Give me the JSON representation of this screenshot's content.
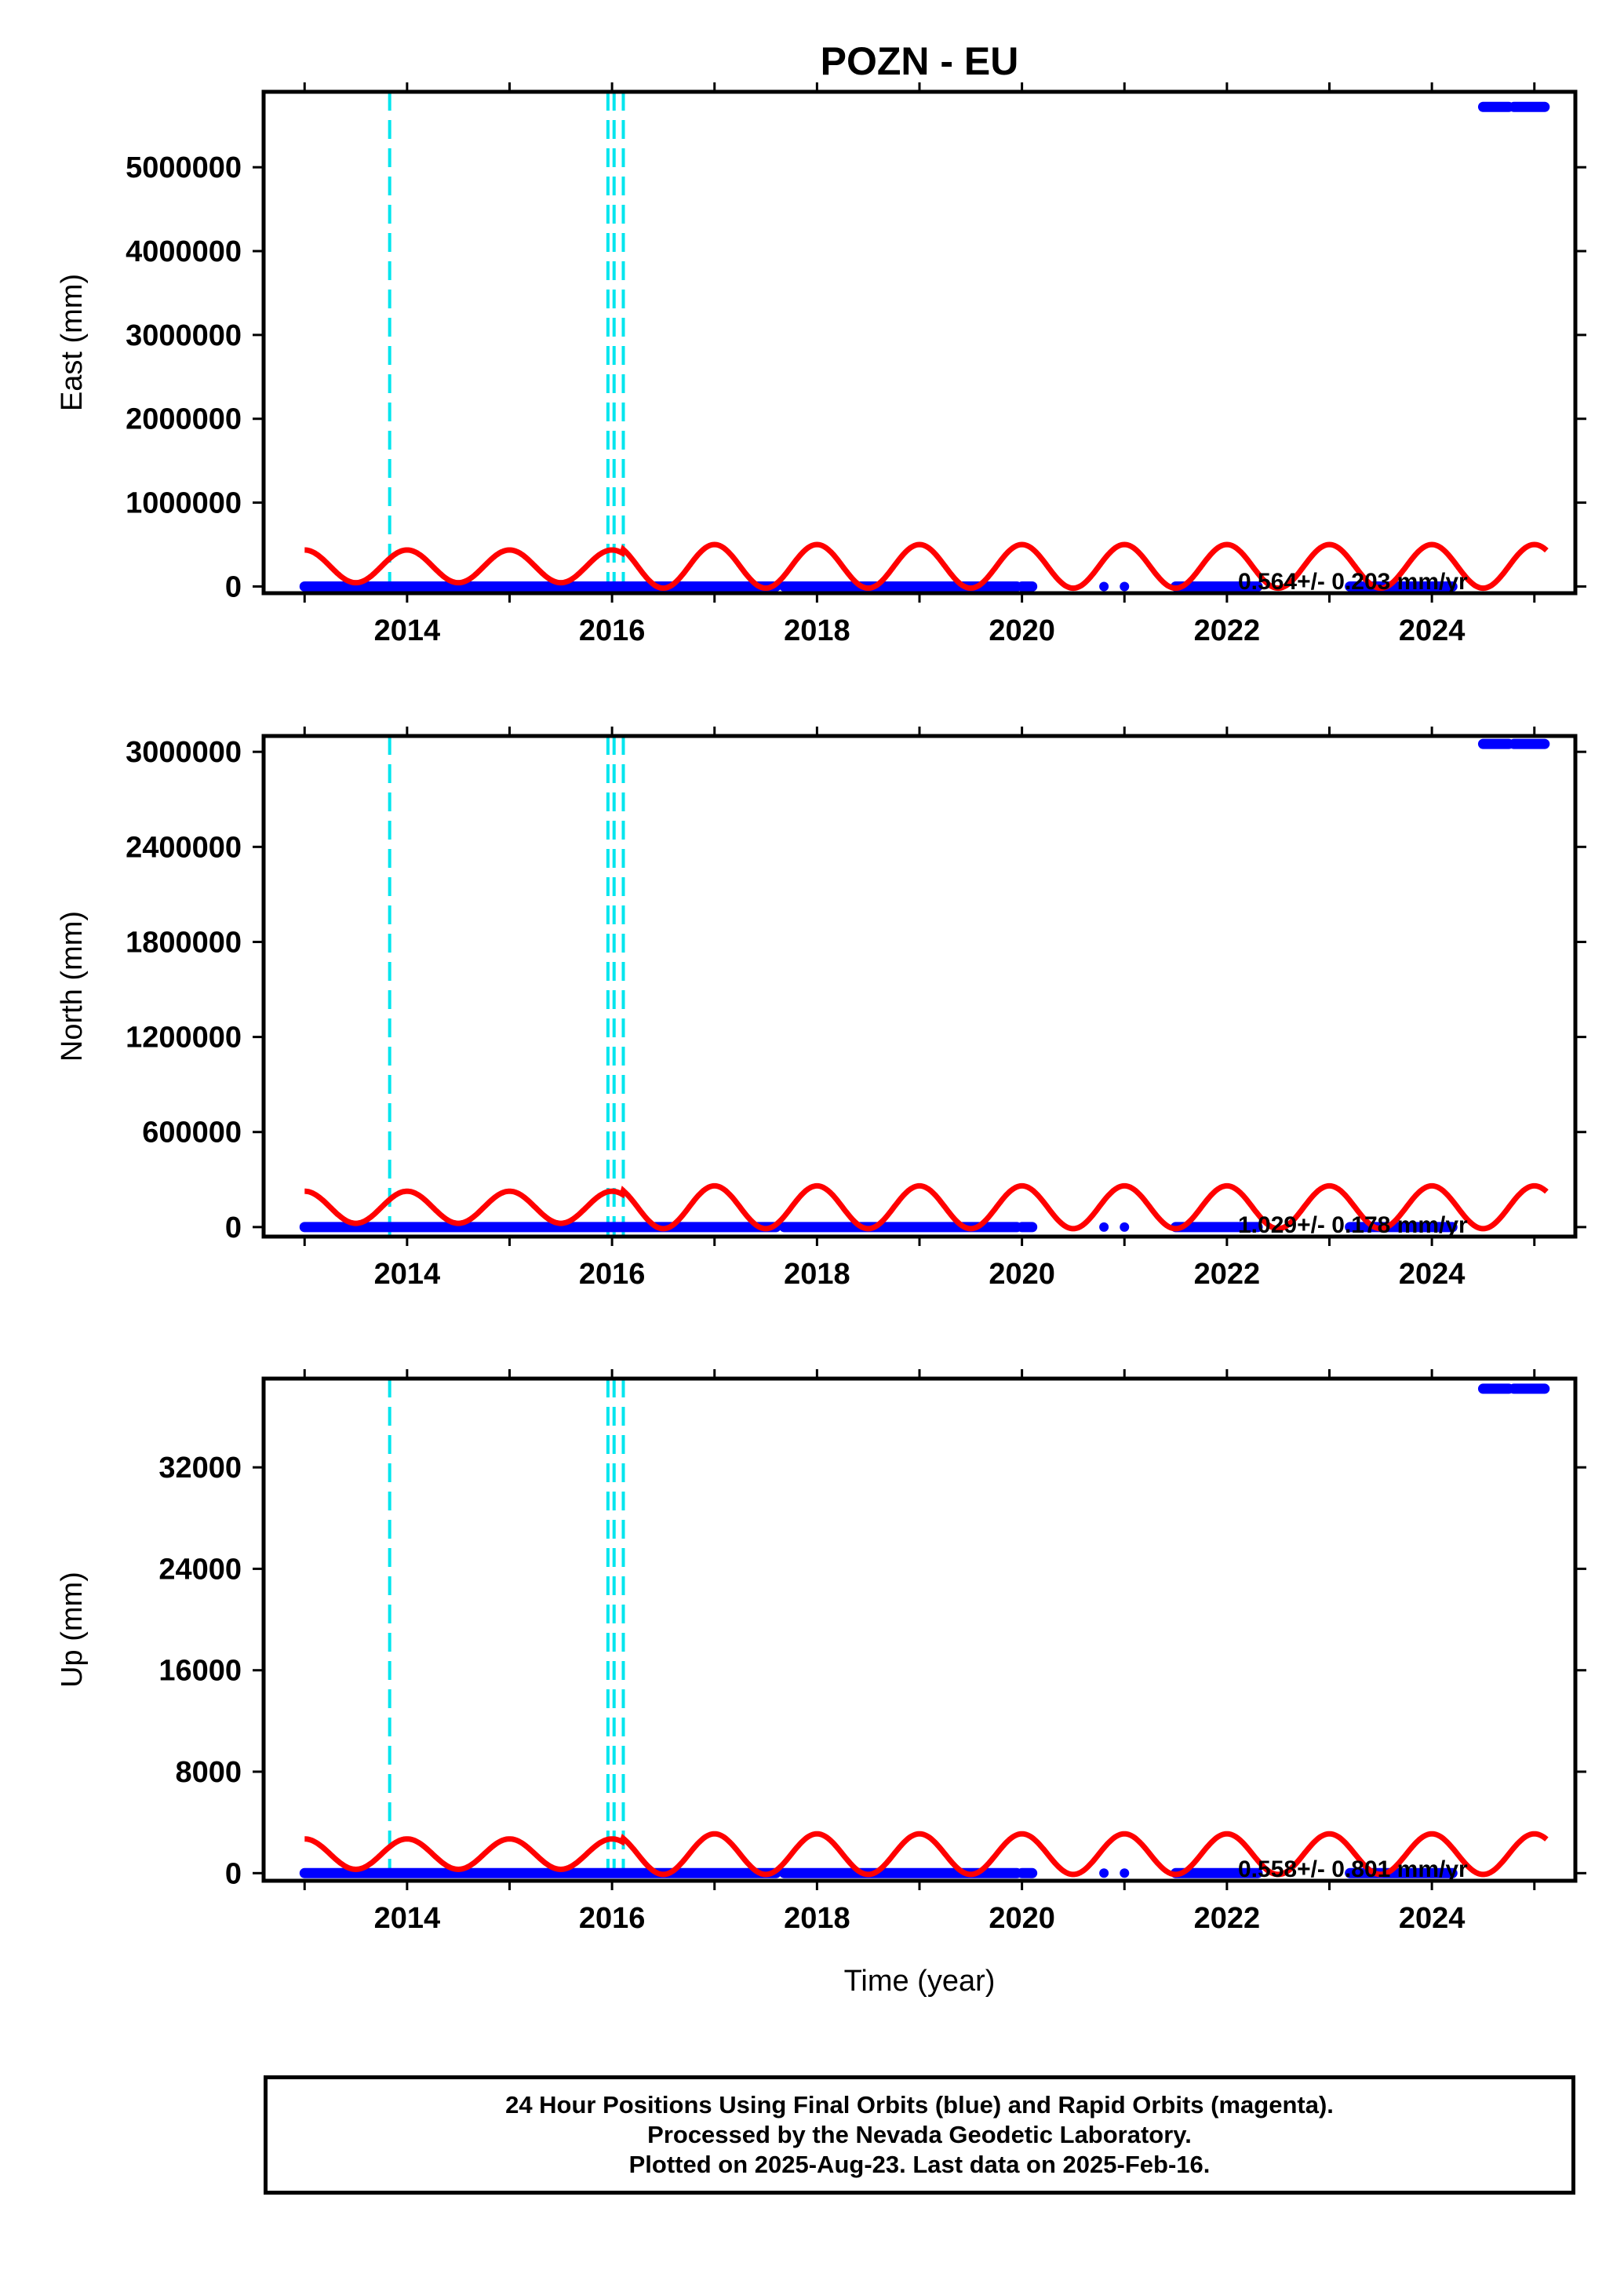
{
  "title": "POZN - EU",
  "xlabel": "Time (year)",
  "footer": {
    "line1": "24 Hour Positions Using Final Orbits (blue) and Rapid Orbits (magenta).",
    "line2": "Processed by the Nevada Geodetic Laboratory.",
    "line3": "Plotted on 2025-Aug-23. Last data on 2025-Feb-16."
  },
  "colors": {
    "final_orbits": "#0000ff",
    "model": "#ff0000",
    "equipment_change": "#00e5ee",
    "frame": "#000000"
  },
  "chart_data": [
    {
      "type": "scatter",
      "panel": "east",
      "ylabel": "East (mm)",
      "rate_label": "0.564+/- 0.203 mm/yr",
      "xlim": [
        2012.6,
        2025.4
      ],
      "ylim": [
        -80000,
        5900000
      ],
      "yticks": [
        0,
        1000000,
        2000000,
        3000000,
        4000000,
        5000000
      ],
      "xticks": [
        2014,
        2016,
        2018,
        2020,
        2022,
        2024
      ],
      "equipment_changes": [
        2013.83,
        2015.96,
        2016.02,
        2016.11
      ],
      "series": [
        {
          "role": "positions",
          "segments": [
            [
              2013.0,
              2017.6,
              0
            ],
            [
              2017.68,
              2019.95,
              0
            ],
            [
              2020.0,
              2020.1,
              0
            ],
            [
              2021.5,
              2022.3,
              0
            ],
            [
              2023.2,
              2024.2,
              0
            ],
            [
              2024.5,
              2024.75,
              5720000
            ],
            [
              2024.8,
              2025.1,
              5720000
            ]
          ],
          "points": [
            [
              2020.8,
              0
            ],
            [
              2021.0,
              0
            ]
          ]
        },
        {
          "role": "model",
          "amplitude": 260000,
          "offset": 240000
        }
      ]
    },
    {
      "type": "scatter",
      "panel": "north",
      "ylabel": "North (mm)",
      "rate_label": "1.029+/- 0.178 mm/yr",
      "xlim": [
        2012.6,
        2025.4
      ],
      "ylim": [
        -60000,
        3100000
      ],
      "yticks": [
        0,
        600000,
        1200000,
        1800000,
        2400000,
        3000000
      ],
      "xticks": [
        2014,
        2016,
        2018,
        2020,
        2022,
        2024
      ],
      "equipment_changes": [
        2013.83,
        2015.96,
        2016.02,
        2016.11
      ],
      "series": [
        {
          "role": "positions",
          "segments": [
            [
              2013.0,
              2017.6,
              0
            ],
            [
              2017.68,
              2019.95,
              0
            ],
            [
              2020.0,
              2020.1,
              0
            ],
            [
              2021.5,
              2022.3,
              0
            ],
            [
              2023.2,
              2024.2,
              0
            ],
            [
              2024.5,
              2024.75,
              3050000
            ],
            [
              2024.8,
              2025.1,
              3050000
            ]
          ],
          "points": [
            [
              2020.8,
              0
            ],
            [
              2021.0,
              0
            ]
          ]
        },
        {
          "role": "model",
          "amplitude": 135000,
          "offset": 125000
        }
      ]
    },
    {
      "type": "scatter",
      "panel": "up",
      "ylabel": "Up (mm)",
      "rate_label": "0.558+/- 0.801 mm/yr",
      "xlim": [
        2012.6,
        2025.4
      ],
      "ylim": [
        -600,
        39000
      ],
      "yticks": [
        0,
        8000,
        16000,
        24000,
        32000
      ],
      "xticks": [
        2014,
        2016,
        2018,
        2020,
        2022,
        2024
      ],
      "equipment_changes": [
        2013.83,
        2015.96,
        2016.02,
        2016.11
      ],
      "series": [
        {
          "role": "positions",
          "segments": [
            [
              2013.0,
              2017.6,
              0
            ],
            [
              2017.68,
              2019.95,
              0
            ],
            [
              2020.0,
              2020.1,
              0
            ],
            [
              2021.5,
              2022.3,
              0
            ],
            [
              2023.2,
              2024.2,
              0
            ],
            [
              2024.5,
              2024.75,
              38200
            ],
            [
              2024.8,
              2025.1,
              38200
            ]
          ],
          "points": [
            [
              2020.8,
              0
            ],
            [
              2021.0,
              0
            ]
          ]
        },
        {
          "role": "model",
          "amplitude": 1600,
          "offset": 1500
        }
      ]
    }
  ]
}
